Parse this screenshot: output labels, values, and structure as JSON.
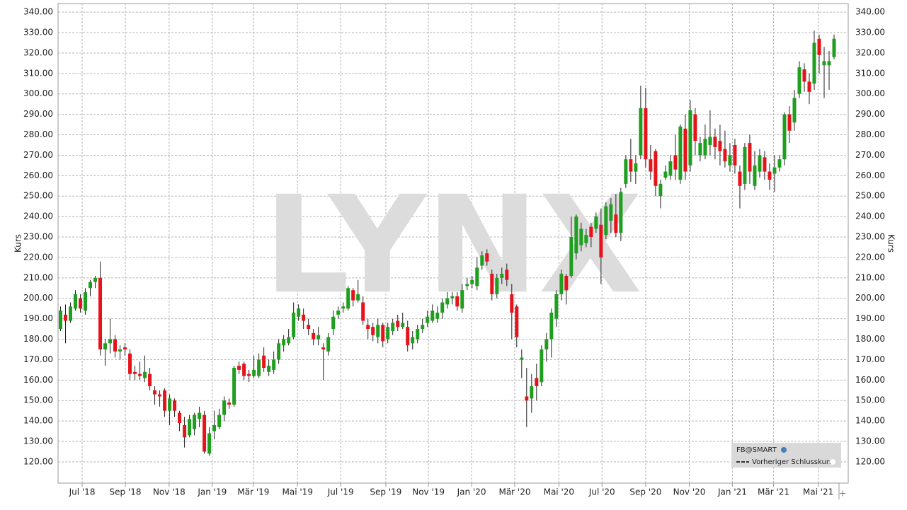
{
  "chart_data": {
    "type": "candlestick",
    "ylabel": "Kurs",
    "watermark": "LYNX",
    "legend": {
      "title": "FB@SMART",
      "entry": "Vorheriger Schlusskurs"
    },
    "up_color": "#1f9e1f",
    "down_color": "#e5141b",
    "grid": true,
    "ylim": [
      109.6,
      344.2
    ],
    "yticks": [
      {
        "value": 120,
        "label": "120.00"
      },
      {
        "value": 130,
        "label": "130.00"
      },
      {
        "value": 140,
        "label": "140.00"
      },
      {
        "value": 150,
        "label": "150.00"
      },
      {
        "value": 160,
        "label": "160.00"
      },
      {
        "value": 170,
        "label": "170.00"
      },
      {
        "value": 180,
        "label": "180.00"
      },
      {
        "value": 190,
        "label": "190.00"
      },
      {
        "value": 200,
        "label": "200.00"
      },
      {
        "value": 210,
        "label": "210.00"
      },
      {
        "value": 220,
        "label": "220.00"
      },
      {
        "value": 230,
        "label": "230.00"
      },
      {
        "value": 240,
        "label": "240.00"
      },
      {
        "value": 250,
        "label": "250.00"
      },
      {
        "value": 260,
        "label": "260.00"
      },
      {
        "value": 270,
        "label": "270.00"
      },
      {
        "value": 280,
        "label": "280.00"
      },
      {
        "value": 290,
        "label": "290.00"
      },
      {
        "value": 300,
        "label": "300.00"
      },
      {
        "value": 310,
        "label": "310.00"
      },
      {
        "value": 320,
        "label": "320.00"
      },
      {
        "value": 330,
        "label": "330.00"
      },
      {
        "value": 340,
        "label": "340.00"
      }
    ],
    "xlim": [
      -0.5,
      157
    ],
    "xticks": [
      {
        "value": 4.36,
        "label": "Jul '18"
      },
      {
        "value": 13.07,
        "label": "Sep '18"
      },
      {
        "value": 21.9,
        "label": "Nov '18"
      },
      {
        "value": 30.6,
        "label": "Jan '19"
      },
      {
        "value": 38.9,
        "label": "Mär '19"
      },
      {
        "value": 47.8,
        "label": "Mai '19"
      },
      {
        "value": 56.5,
        "label": "Jul '19"
      },
      {
        "value": 65.6,
        "label": "Sep '19"
      },
      {
        "value": 74.2,
        "label": "Nov '19"
      },
      {
        "value": 82.9,
        "label": "Jan '20"
      },
      {
        "value": 91.6,
        "label": "Mär '20"
      },
      {
        "value": 100.5,
        "label": "Mai '20"
      },
      {
        "value": 109.2,
        "label": "Jul '20"
      },
      {
        "value": 118,
        "label": "Sep '20"
      },
      {
        "value": 126.8,
        "label": "Nov '20"
      },
      {
        "value": 135.5,
        "label": "Jan '21"
      },
      {
        "value": 143.8,
        "label": "Mär '21"
      },
      {
        "value": 152.8,
        "label": "Mai '21"
      }
    ],
    "x": [
      0,
      1,
      2,
      3,
      4,
      5,
      6,
      7,
      8,
      9,
      10,
      11,
      12,
      13,
      14,
      15,
      16,
      17,
      18,
      19,
      20,
      21,
      22,
      23,
      24,
      25,
      26,
      27,
      28,
      29,
      30,
      31,
      32,
      33,
      34,
      35,
      36,
      37,
      38,
      39,
      40,
      41,
      42,
      43,
      44,
      45,
      46,
      47,
      48,
      49,
      50,
      51,
      52,
      53,
      54,
      55,
      56,
      57,
      58,
      59,
      60,
      61,
      62,
      63,
      64,
      65,
      66,
      67,
      68,
      69,
      70,
      71,
      72,
      73,
      74,
      75,
      76,
      77,
      78,
      79,
      80,
      81,
      82,
      83,
      84,
      85,
      86,
      87,
      88,
      89,
      90,
      91,
      92,
      93,
      94,
      95,
      96,
      97,
      98,
      99,
      100,
      101,
      102,
      103,
      104,
      105,
      106,
      107,
      108,
      109,
      110,
      111,
      112,
      113,
      114,
      115,
      116,
      117,
      118,
      119,
      120,
      121,
      122,
      123,
      124,
      125,
      126,
      127,
      128,
      129,
      130,
      131,
      132,
      133,
      134,
      135,
      136,
      137,
      138,
      139,
      140,
      141,
      142,
      143,
      144,
      145,
      146,
      147,
      148,
      149,
      150,
      151,
      152,
      153,
      154,
      155,
      156
    ],
    "open": [
      185,
      192,
      189,
      195,
      200,
      194,
      205,
      208,
      210,
      175,
      178,
      180,
      174,
      176,
      173,
      164,
      163,
      161,
      163,
      155,
      153,
      155,
      145,
      150,
      144,
      138,
      133,
      136,
      141,
      143,
      124,
      135,
      137,
      143,
      149,
      148,
      167,
      168,
      163,
      162,
      162,
      172,
      164,
      165,
      170,
      177,
      178,
      181,
      191,
      192,
      187,
      183,
      180,
      176,
      174,
      185,
      192,
      195,
      195,
      204,
      199,
      198,
      187,
      186,
      181,
      187,
      180,
      184,
      189,
      186,
      186,
      178,
      180,
      185,
      188,
      189,
      190,
      193,
      197,
      200,
      201,
      195,
      206,
      207,
      206,
      216,
      222,
      212,
      202,
      210,
      214,
      202,
      196,
      170,
      152,
      151,
      161,
      159,
      175,
      180,
      190,
      202,
      211,
      211,
      222,
      226,
      227,
      235,
      234,
      236,
      231,
      238,
      241,
      232,
      256,
      268,
      262,
      270,
      293,
      268,
      272,
      250,
      259,
      260,
      270,
      258,
      283,
      265,
      290,
      270,
      270,
      275,
      279,
      277,
      273,
      265,
      275,
      262,
      256,
      276,
      255,
      262,
      269,
      262,
      261,
      264,
      268,
      290,
      286,
      300,
      312,
      306,
      305,
      327,
      314,
      314,
      318
    ],
    "high": [
      196,
      197,
      198,
      204,
      202,
      205,
      209,
      211,
      218,
      180,
      190,
      182,
      177,
      178,
      175,
      167,
      169,
      172,
      166,
      157,
      155,
      156,
      153,
      151,
      145,
      142,
      143,
      144,
      147,
      145,
      137,
      145,
      146,
      152,
      151,
      167,
      169,
      169,
      165,
      172,
      173,
      176,
      170,
      174,
      180,
      182,
      185,
      198,
      197,
      195,
      190,
      185,
      186,
      178,
      183,
      194,
      196,
      198,
      206,
      205,
      209,
      201,
      190,
      188,
      190,
      188,
      188,
      190,
      192,
      193,
      189,
      184,
      187,
      190,
      194,
      197,
      196,
      200,
      203,
      203,
      203,
      207,
      210,
      211,
      220,
      223,
      224,
      214,
      212,
      215,
      217,
      207,
      197,
      175,
      166,
      163,
      168,
      177,
      183,
      195,
      204,
      214,
      212,
      240,
      241,
      237,
      234,
      237,
      242,
      244,
      247,
      249,
      251,
      254,
      270,
      278,
      270,
      304,
      303,
      275,
      273,
      258,
      265,
      270,
      280,
      285,
      290,
      297,
      293,
      279,
      285,
      292,
      283,
      285,
      282,
      276,
      278,
      265,
      276,
      280,
      272,
      273,
      272,
      266,
      270,
      270,
      291,
      294,
      302,
      316,
      315,
      310,
      331,
      329,
      323,
      321,
      329
    ],
    "low": [
      184,
      178,
      188,
      194,
      193,
      192,
      201,
      205,
      172,
      167,
      173,
      171,
      170,
      172,
      160,
      160,
      160,
      159,
      155,
      148,
      147,
      142,
      138,
      142,
      135,
      127,
      132,
      133,
      137,
      124,
      123,
      131,
      136,
      140,
      146,
      147,
      163,
      160,
      159,
      161,
      161,
      164,
      162,
      163,
      168,
      174,
      177,
      180,
      189,
      185,
      182,
      177,
      177,
      160,
      172,
      182,
      190,
      193,
      194,
      196,
      198,
      187,
      180,
      179,
      178,
      176,
      178,
      182,
      184,
      185,
      174,
      175,
      178,
      183,
      186,
      188,
      188,
      190,
      195,
      197,
      194,
      193,
      204,
      205,
      204,
      214,
      216,
      199,
      200,
      207,
      206,
      180,
      176,
      161,
      137,
      144,
      150,
      157,
      169,
      171,
      186,
      199,
      197,
      210,
      219,
      223,
      225,
      225,
      232,
      207,
      229,
      232,
      230,
      228,
      254,
      257,
      256,
      268,
      264,
      258,
      250,
      244,
      258,
      258,
      258,
      256,
      258,
      262,
      270,
      267,
      268,
      270,
      268,
      265,
      264,
      262,
      261,
      244,
      253,
      256,
      253,
      259,
      258,
      253,
      252,
      262,
      265,
      276,
      282,
      298,
      301,
      295,
      302,
      310,
      298,
      302,
      317
    ],
    "close": [
      194,
      189,
      196,
      202,
      195,
      203,
      208,
      210,
      175,
      178,
      180,
      174,
      175,
      175,
      163,
      163,
      162,
      164,
      157,
      153,
      152,
      145,
      151,
      145,
      139,
      132,
      141,
      143,
      144,
      125,
      134,
      138,
      143,
      150,
      148,
      166,
      165,
      162,
      162,
      165,
      170,
      166,
      167,
      170,
      178,
      180,
      181,
      193,
      195,
      189,
      185,
      180,
      182,
      175,
      181,
      191,
      194,
      196,
      205,
      199,
      202,
      189,
      185,
      182,
      187,
      179,
      186,
      188,
      186,
      188,
      177,
      181,
      185,
      187,
      191,
      194,
      193,
      198,
      200,
      201,
      196,
      204,
      207,
      209,
      215,
      221,
      218,
      202,
      210,
      212,
      209,
      193,
      181,
      171,
      150,
      157,
      157,
      175,
      180,
      193,
      202,
      212,
      204,
      230,
      240,
      234,
      231,
      230,
      240,
      220,
      245,
      246,
      232,
      252,
      268,
      262,
      266,
      293,
      268,
      262,
      255,
      256,
      262,
      267,
      263,
      284,
      262,
      292,
      277,
      276,
      278,
      279,
      274,
      272,
      267,
      270,
      265,
      255,
      274,
      262,
      265,
      270,
      262,
      258,
      264,
      268,
      290,
      282,
      298,
      313,
      306,
      301,
      325,
      319,
      316,
      316,
      327
    ]
  }
}
